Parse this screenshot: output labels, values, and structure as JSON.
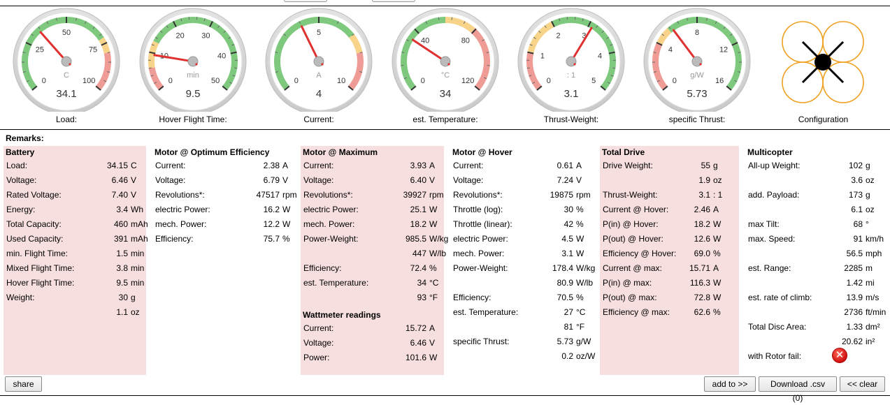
{
  "gauges": [
    {
      "name": "load",
      "label": "Load:",
      "unit": "C",
      "value_text": "34.1",
      "min": 0,
      "max": 100,
      "value": 34.1,
      "ticks": [
        "0",
        "25",
        "50",
        "75",
        "100"
      ],
      "zones": [
        {
          "from": 0,
          "to": 0.72,
          "color": "#7fc97f"
        },
        {
          "from": 0.72,
          "to": 0.8,
          "color": "#f8d38a"
        },
        {
          "from": 0.8,
          "to": 1,
          "color": "#ef9c96"
        }
      ]
    },
    {
      "name": "hover-flight-time",
      "label": "Hover Flight Time:",
      "unit": "min",
      "value_text": "9.5",
      "min": 0,
      "max": 50,
      "value": 9.5,
      "ticks": [
        "0",
        "10",
        "20",
        "30",
        "40",
        "50"
      ],
      "zones": [
        {
          "from": 0,
          "to": 0.12,
          "color": "#ef9c96"
        },
        {
          "from": 0.12,
          "to": 0.26,
          "color": "#f8d38a"
        },
        {
          "from": 0.26,
          "to": 1,
          "color": "#7fc97f"
        }
      ]
    },
    {
      "name": "current",
      "label": "Current:",
      "unit": "A",
      "value_text": "4",
      "min": 0,
      "max": 10,
      "value": 4,
      "ticks": [
        "0",
        "5",
        "10"
      ],
      "zones": [
        {
          "from": 0,
          "to": 0.7,
          "color": "#7fc97f"
        },
        {
          "from": 0.7,
          "to": 0.8,
          "color": "#f8d38a"
        },
        {
          "from": 0.8,
          "to": 1,
          "color": "#ef9c96"
        }
      ]
    },
    {
      "name": "est-temperature",
      "label": "est. Temperature:",
      "unit": "°C",
      "value_text": "34",
      "min": 0,
      "max": 120,
      "value": 34,
      "ticks": [
        "0",
        "40",
        "80",
        "120"
      ],
      "zones": [
        {
          "from": 0,
          "to": 0.5,
          "color": "#7fc97f"
        },
        {
          "from": 0.5,
          "to": 0.66,
          "color": "#f8d38a"
        },
        {
          "from": 0.66,
          "to": 1,
          "color": "#ef9c96"
        }
      ]
    },
    {
      "name": "thrust-weight",
      "label": "Thrust-Weight:",
      "unit": ": 1",
      "value_text": "3.1",
      "min": 0,
      "max": 5,
      "value": 3.1,
      "ticks": [
        "0",
        "1",
        "2",
        "3",
        "4",
        "5"
      ],
      "zones": [
        {
          "from": 0,
          "to": 0.2,
          "color": "#ef9c96"
        },
        {
          "from": 0.2,
          "to": 0.4,
          "color": "#f8d38a"
        },
        {
          "from": 0.4,
          "to": 1,
          "color": "#7fc97f"
        }
      ]
    },
    {
      "name": "specific-thrust",
      "label": "specific Thrust:",
      "unit": "g/W",
      "value_text": "5.73",
      "min": 0,
      "max": 16,
      "value": 5.73,
      "ticks": [
        "0",
        "4",
        "8",
        "12",
        "16"
      ],
      "zones": [
        {
          "from": 0,
          "to": 0.25,
          "color": "#ef9c96"
        },
        {
          "from": 0.25,
          "to": 0.34,
          "color": "#f8d38a"
        },
        {
          "from": 0.34,
          "to": 1,
          "color": "#7fc97f"
        }
      ]
    }
  ],
  "config": {
    "label": "Configuration",
    "icon": "quadcopter-x-icon",
    "rotor_color": "#f0a020"
  },
  "remarks_label": "Remarks:",
  "sections": [
    {
      "name": "battery",
      "title": "Battery",
      "pink": true,
      "rows": [
        {
          "label": "Load:",
          "value": "34.15",
          "unit": "C"
        },
        {
          "label": "Voltage:",
          "value": "6.46",
          "unit": "V"
        },
        {
          "label": "Rated Voltage:",
          "value": "7.40",
          "unit": "V"
        },
        {
          "label": "Energy:",
          "value": "3.4",
          "unit": "Wh"
        },
        {
          "label": "Total Capacity:",
          "value": "460",
          "unit": "mAh"
        },
        {
          "label": "Used Capacity:",
          "value": "391",
          "unit": "mAh"
        },
        {
          "label": "min. Flight Time:",
          "value": "1.5",
          "unit": "min"
        },
        {
          "label": "Mixed Flight Time:",
          "value": "3.8",
          "unit": "min"
        },
        {
          "label": "Hover Flight Time:",
          "value": "9.5",
          "unit": "min"
        },
        {
          "label": "Weight:",
          "value": "30",
          "unit": "g"
        },
        {
          "label": "",
          "value": "1.1",
          "unit": "oz"
        }
      ]
    },
    {
      "name": "motor-optimum",
      "title": "Motor @ Optimum Efficiency",
      "pink": false,
      "rows": [
        {
          "label": "Current:",
          "value": "2.38",
          "unit": "A"
        },
        {
          "label": "Voltage:",
          "value": "6.79",
          "unit": "V"
        },
        {
          "label": "Revolutions*:",
          "value": "47517",
          "unit": "rpm"
        },
        {
          "label": "electric Power:",
          "value": "16.2",
          "unit": "W"
        },
        {
          "label": "mech. Power:",
          "value": "12.2",
          "unit": "W"
        },
        {
          "label": "Efficiency:",
          "value": "75.7",
          "unit": "%"
        }
      ]
    },
    {
      "name": "motor-maximum",
      "title": "Motor @ Maximum",
      "pink": true,
      "rows": [
        {
          "label": "Current:",
          "value": "3.93",
          "unit": "A"
        },
        {
          "label": "Voltage:",
          "value": "6.40",
          "unit": "V"
        },
        {
          "label": "Revolutions*:",
          "value": "39927",
          "unit": "rpm"
        },
        {
          "label": "electric Power:",
          "value": "25.1",
          "unit": "W"
        },
        {
          "label": "mech. Power:",
          "value": "18.2",
          "unit": "W"
        },
        {
          "label": "Power-Weight:",
          "value": "985.5",
          "unit": "W/kg"
        },
        {
          "label": "",
          "value": "447",
          "unit": "W/lb"
        },
        {
          "label": "Efficiency:",
          "value": "72.4",
          "unit": "%"
        },
        {
          "label": "est. Temperature:",
          "value": "34",
          "unit": "°C"
        },
        {
          "label": "",
          "value": "93",
          "unit": "°F"
        }
      ],
      "sub_title": "Wattmeter readings",
      "sub_rows": [
        {
          "label": "Current:",
          "value": "15.72",
          "unit": "A"
        },
        {
          "label": "Voltage:",
          "value": "6.46",
          "unit": "V"
        },
        {
          "label": "Power:",
          "value": "101.6",
          "unit": "W"
        }
      ]
    },
    {
      "name": "motor-hover",
      "title": "Motor @ Hover",
      "pink": false,
      "rows": [
        {
          "label": "Current:",
          "value": "0.61",
          "unit": "A"
        },
        {
          "label": "Voltage:",
          "value": "7.24",
          "unit": "V"
        },
        {
          "label": "Revolutions*:",
          "value": "19875",
          "unit": "rpm"
        },
        {
          "label": "Throttle (log):",
          "value": "30",
          "unit": "%"
        },
        {
          "label": "Throttle (linear):",
          "value": "42",
          "unit": "%"
        },
        {
          "label": "electric Power:",
          "value": "4.5",
          "unit": "W"
        },
        {
          "label": "mech. Power:",
          "value": "3.1",
          "unit": "W"
        },
        {
          "label": "Power-Weight:",
          "value": "178.4",
          "unit": "W/kg"
        },
        {
          "label": "",
          "value": "80.9",
          "unit": "W/lb"
        },
        {
          "label": "Efficiency:",
          "value": "70.5",
          "unit": "%"
        },
        {
          "label": "est. Temperature:",
          "value": "27",
          "unit": "°C"
        },
        {
          "label": "",
          "value": "81",
          "unit": "°F"
        },
        {
          "label": "specific Thrust:",
          "value": "5.73",
          "unit": "g/W"
        },
        {
          "label": "",
          "value": "0.2",
          "unit": "oz/W"
        }
      ]
    },
    {
      "name": "total-drive",
      "title": "Total Drive",
      "pink": true,
      "rows": [
        {
          "label": "Drive Weight:",
          "value": "55",
          "unit": "g"
        },
        {
          "label": "",
          "value": "1.9",
          "unit": "oz"
        },
        {
          "label": "Thrust-Weight:",
          "value": "3.1",
          "unit": ": 1"
        },
        {
          "label": "Current @ Hover:",
          "value": "2.46",
          "unit": "A"
        },
        {
          "label": "P(in) @ Hover:",
          "value": "18.2",
          "unit": "W"
        },
        {
          "label": "P(out) @ Hover:",
          "value": "12.6",
          "unit": "W"
        },
        {
          "label": "Efficiency @ Hover:",
          "value": "69.0",
          "unit": "%"
        },
        {
          "label": "Current @ max:",
          "value": "15.71",
          "unit": "A"
        },
        {
          "label": "P(in) @ max:",
          "value": "116.3",
          "unit": "W"
        },
        {
          "label": "P(out) @ max:",
          "value": "72.8",
          "unit": "W"
        },
        {
          "label": "Efficiency @ max:",
          "value": "62.6",
          "unit": "%"
        }
      ]
    },
    {
      "name": "multicopter",
      "title": "Multicopter",
      "pink": false,
      "rows": [
        {
          "label": "All-up Weight:",
          "value": "102",
          "unit": "g"
        },
        {
          "label": "",
          "value": "3.6",
          "unit": "oz"
        },
        {
          "label": "add. Payload:",
          "value": "173",
          "unit": "g"
        },
        {
          "label": "",
          "value": "6.1",
          "unit": "oz"
        },
        {
          "label": "max Tilt:",
          "value": "68",
          "unit": "°"
        },
        {
          "label": "max. Speed:",
          "value": "91",
          "unit": "km/h"
        },
        {
          "label": "",
          "value": "56.5",
          "unit": "mph"
        },
        {
          "label": "est. Range:",
          "value": "2285",
          "unit": "m"
        },
        {
          "label": "",
          "value": "1.42",
          "unit": "mi"
        },
        {
          "label": "est. rate of climb:",
          "value": "13.9",
          "unit": "m/s"
        },
        {
          "label": "",
          "value": "2736",
          "unit": "ft/min"
        },
        {
          "label": "Total Disc Area:",
          "value": "1.33",
          "unit": "dm²"
        },
        {
          "label": "",
          "value": "20.62",
          "unit": "in²"
        },
        {
          "label": "with Rotor fail:",
          "value": "",
          "unit": "",
          "icon": "error-x-icon"
        }
      ]
    }
  ],
  "buttons": {
    "share": "share",
    "add_to": "add to >>",
    "download": "Download .csv (0)",
    "clear": "<< clear"
  }
}
